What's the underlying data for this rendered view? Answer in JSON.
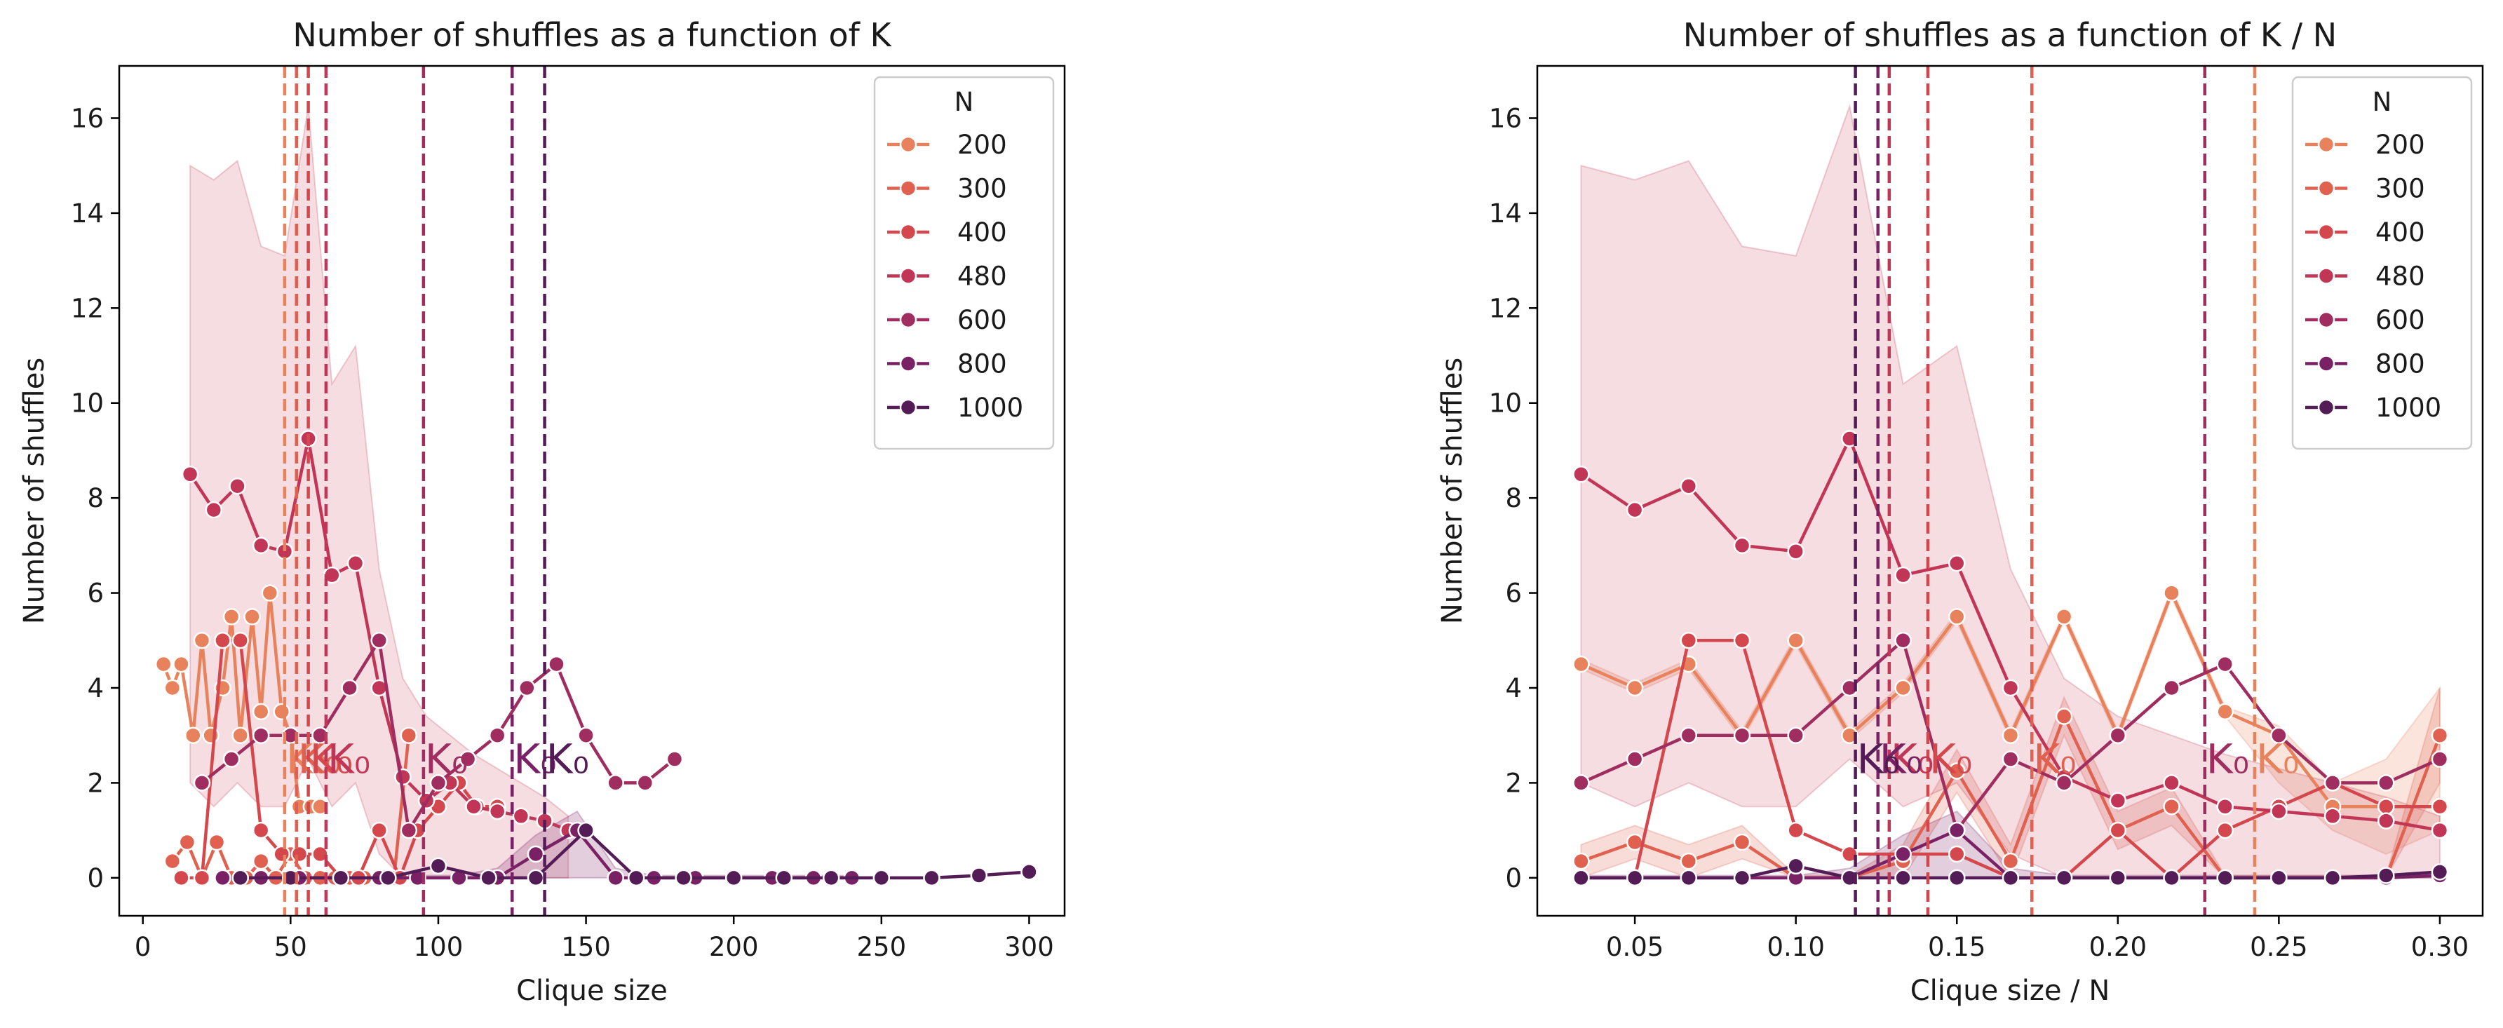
{
  "figure": {
    "palette": {
      "200": "#e8825d",
      "300": "#e0614f",
      "400": "#d4474c",
      "480": "#c13556",
      "600": "#a02d5f",
      "800": "#7a2165",
      "1000": "#531c56"
    },
    "band_color": "#c8405c"
  },
  "chart_data": [
    {
      "type": "line",
      "title": "Number of shuffles as a function of K",
      "xlabel": "Clique size",
      "ylabel": "Number of shuffles",
      "xlim": [
        -8,
        312
      ],
      "ylim": [
        -0.8,
        17.1
      ],
      "xticks": [
        0,
        50,
        100,
        150,
        200,
        250,
        300
      ],
      "xtick_labels": [
        "0",
        "50",
        "100",
        "150",
        "200",
        "250",
        "300"
      ],
      "yticks": [
        0,
        2,
        4,
        6,
        8,
        10,
        12,
        14,
        16
      ],
      "ytick_labels": [
        "0",
        "2",
        "4",
        "6",
        "8",
        "10",
        "12",
        "14",
        "16"
      ],
      "grid": false,
      "legend": {
        "title": "N",
        "placement": "top-right",
        "entries": [
          "200",
          "300",
          "400",
          "480",
          "600",
          "800",
          "1000"
        ]
      },
      "k0_label": "K₀",
      "k0_y": 2.5,
      "series": [
        {
          "name": "200",
          "k0": 48,
          "x": [
            7,
            10,
            13,
            17,
            20,
            23,
            27,
            30,
            33,
            37,
            40,
            43,
            47,
            50,
            53,
            57,
            60
          ],
          "y": [
            4.5,
            4.0,
            4.5,
            3.0,
            5.0,
            3.0,
            4.0,
            5.5,
            3.0,
            5.5,
            3.5,
            6.0,
            3.5,
            3.0,
            1.5,
            1.5,
            1.5
          ],
          "band": null
        },
        {
          "name": "300",
          "k0": 52,
          "x": [
            10,
            15,
            20,
            25,
            30,
            35,
            40,
            45,
            50,
            55,
            60,
            65,
            70,
            75,
            80,
            85,
            90
          ],
          "y": [
            0.35,
            0.75,
            0.0,
            0.75,
            0.0,
            0.0,
            0.35,
            0.0,
            0.5,
            0.0,
            0.0,
            0.0,
            0.0,
            0.0,
            0.0,
            0.0,
            3.0
          ],
          "band": null
        },
        {
          "name": "400",
          "k0": 56,
          "x": [
            13,
            20,
            27,
            33,
            40,
            47,
            53,
            60,
            67,
            73,
            80,
            87,
            93,
            100,
            107,
            113,
            120
          ],
          "y": [
            0.0,
            0.0,
            5.0,
            5.0,
            1.0,
            0.5,
            0.5,
            0.5,
            0.0,
            0.0,
            1.0,
            0.0,
            1.0,
            1.5,
            2.0,
            1.5,
            1.5
          ],
          "band": null
        },
        {
          "name": "480",
          "k0": 62,
          "x": [
            16,
            24,
            32,
            40,
            48,
            56,
            64,
            72,
            80,
            88,
            96,
            104,
            112,
            120,
            128,
            136,
            144
          ],
          "y": [
            8.5,
            7.75,
            8.25,
            7.0,
            6.875,
            9.25,
            6.375,
            6.625,
            4.0,
            2.125,
            1.625,
            2.0,
            1.5,
            1.4,
            1.3,
            1.2,
            1.0
          ],
          "band": {
            "x": [
              16,
              24,
              32,
              40,
              48,
              56,
              64,
              72,
              80,
              88,
              96,
              104,
              112,
              120,
              128,
              136,
              144
            ],
            "lower": [
              2.0,
              1.5,
              2.0,
              1.5,
              1.5,
              2.5,
              1.5,
              2.0,
              0.5,
              0.0,
              0.0,
              0.0,
              0.0,
              0.0,
              0.0,
              0.0,
              0.0
            ],
            "upper": [
              15.0,
              14.7,
              15.1,
              13.3,
              13.1,
              16.25,
              10.4,
              11.2,
              6.5,
              4.2,
              3.4,
              3.0,
              2.6,
              2.3,
              2.0,
              1.7,
              1.3
            ]
          }
        },
        {
          "name": "600",
          "k0": 95,
          "x": [
            20,
            30,
            40,
            50,
            60,
            70,
            80,
            90,
            100,
            110,
            120,
            130,
            140,
            150,
            160,
            170,
            180
          ],
          "y": [
            2.0,
            2.5,
            3.0,
            3.0,
            3.0,
            4.0,
            5.0,
            1.0,
            2.0,
            2.5,
            3.0,
            4.0,
            4.5,
            3.0,
            2.0,
            2.0,
            2.5
          ],
          "band": null
        },
        {
          "name": "800",
          "k0": 125,
          "x": [
            27,
            40,
            53,
            67,
            80,
            93,
            107,
            120,
            133,
            147,
            160,
            173,
            187,
            200,
            213,
            227,
            240
          ],
          "y": [
            0.0,
            0.0,
            0.0,
            0.0,
            0.0,
            0.0,
            0.0,
            0.0,
            0.5,
            1.0,
            0.0,
            0.0,
            0.0,
            0.0,
            0.0,
            0.0,
            0.0
          ],
          "band": {
            "x": [
              27,
              40,
              53,
              67,
              80,
              93,
              107,
              120,
              133,
              147,
              160,
              173,
              187,
              200,
              213,
              227,
              240
            ],
            "lower": [
              0,
              0,
              0,
              0,
              0,
              0,
              0,
              0,
              0,
              0,
              0,
              0,
              0,
              0,
              0,
              0,
              0
            ],
            "upper": [
              0.05,
              0.05,
              0.05,
              0.05,
              0.05,
              0.05,
              0.05,
              0.2,
              0.9,
              1.4,
              0.2,
              0.05,
              0.05,
              0.05,
              0.05,
              0.05,
              0.05
            ]
          }
        },
        {
          "name": "1000",
          "k0": 136,
          "x": [
            33,
            50,
            67,
            83,
            100,
            117,
            133,
            150,
            167,
            183,
            200,
            217,
            233,
            250,
            267,
            283,
            300
          ],
          "y": [
            0.0,
            0.0,
            0.0,
            0.0,
            0.25,
            0.0,
            0.0,
            1.0,
            0.0,
            0.0,
            0.0,
            0.0,
            0.0,
            0.0,
            0.0,
            0.05,
            0.125
          ],
          "band": null
        }
      ]
    },
    {
      "type": "line",
      "title": "Number of shuffles as a function of K / N",
      "xlabel": "Clique size / N",
      "ylabel": "Number of shuffles",
      "xlim": [
        0.0197,
        0.3133
      ],
      "ylim": [
        -0.8,
        17.1
      ],
      "xticks": [
        0.05,
        0.1,
        0.15,
        0.2,
        0.25,
        0.3
      ],
      "xtick_labels": [
        "0.05",
        "0.10",
        "0.15",
        "0.20",
        "0.25",
        "0.30"
      ],
      "yticks": [
        0,
        2,
        4,
        6,
        8,
        10,
        12,
        14,
        16
      ],
      "ytick_labels": [
        "0",
        "2",
        "4",
        "6",
        "8",
        "10",
        "12",
        "14",
        "16"
      ],
      "grid": false,
      "legend": {
        "title": "N",
        "placement": "top-right",
        "entries": [
          "200",
          "300",
          "400",
          "480",
          "600",
          "800",
          "1000"
        ]
      },
      "k0_label": "K₀",
      "k0_y": 2.5,
      "series": [
        {
          "name": "200",
          "k0": 0.2425,
          "x": [
            0.0333,
            0.05,
            0.0667,
            0.0833,
            0.1,
            0.1167,
            0.1333,
            0.15,
            0.1667,
            0.1833,
            0.2,
            0.2167,
            0.2333,
            0.25,
            0.2667,
            0.2833,
            0.3
          ],
          "y": [
            4.5,
            4.0,
            4.5,
            3.0,
            5.0,
            3.0,
            4.0,
            5.5,
            3.0,
            5.5,
            3.0,
            6.0,
            3.5,
            3.0,
            1.5,
            1.5,
            1.5
          ],
          "band": {
            "x": [
              0.0333,
              0.05,
              0.0667,
              0.0833,
              0.1,
              0.1167,
              0.1333,
              0.15,
              0.1667,
              0.1833,
              0.2,
              0.2167,
              0.2333,
              0.25,
              0.2667,
              0.2833,
              0.3
            ],
            "lower": [
              4.4,
              3.9,
              4.4,
              2.9,
              4.9,
              2.9,
              3.9,
              5.4,
              2.9,
              5.4,
              2.9,
              5.9,
              3.4,
              2.0,
              1.0,
              0.5,
              1.0
            ],
            "upper": [
              4.6,
              4.1,
              4.6,
              3.1,
              5.1,
              3.1,
              4.1,
              5.6,
              3.1,
              5.6,
              3.1,
              6.1,
              3.6,
              3.2,
              2.0,
              2.5,
              4.0
            ]
          }
        },
        {
          "name": "300",
          "k0": 0.1733,
          "x": [
            0.0333,
            0.05,
            0.0667,
            0.0833,
            0.1,
            0.1167,
            0.1333,
            0.15,
            0.1667,
            0.1833,
            0.2,
            0.2167,
            0.2333,
            0.25,
            0.2667,
            0.2833,
            0.3
          ],
          "y": [
            0.35,
            0.75,
            0.35,
            0.75,
            0.0,
            0.0,
            0.35,
            2.25,
            0.35,
            3.4,
            1.0,
            1.5,
            0.0,
            0.0,
            0.0,
            0.0,
            3.0
          ],
          "band": {
            "x": [
              0.0333,
              0.05,
              0.0667,
              0.0833,
              0.1,
              0.1167,
              0.1333,
              0.15,
              0.1667,
              0.1833,
              0.2,
              0.2167,
              0.2333,
              0.25,
              0.2667,
              0.2833,
              0.3
            ],
            "lower": [
              0.0,
              0.4,
              0.0,
              0.4,
              0.0,
              0.0,
              0.0,
              1.8,
              0.0,
              3.0,
              0.6,
              1.1,
              0.0,
              0.0,
              0.0,
              0.0,
              2.0
            ],
            "upper": [
              0.7,
              1.1,
              0.7,
              1.1,
              0.05,
              0.05,
              0.7,
              2.7,
              0.7,
              3.8,
              1.4,
              1.9,
              0.05,
              0.05,
              0.05,
              0.05,
              4.0
            ]
          }
        },
        {
          "name": "400",
          "k0": 0.141,
          "x": [
            0.0333,
            0.05,
            0.0667,
            0.0833,
            0.1,
            0.1167,
            0.1333,
            0.15,
            0.1667,
            0.1833,
            0.2,
            0.2167,
            0.2333,
            0.25,
            0.2667,
            0.2833,
            0.3
          ],
          "y": [
            0.0,
            0.0,
            5.0,
            5.0,
            1.0,
            0.5,
            0.5,
            0.5,
            0.0,
            0.0,
            1.0,
            0.0,
            1.0,
            1.5,
            2.0,
            1.5,
            1.5
          ],
          "band": null
        },
        {
          "name": "480",
          "k0": 0.129,
          "x": [
            0.0333,
            0.05,
            0.0667,
            0.0833,
            0.1,
            0.1167,
            0.1333,
            0.15,
            0.1667,
            0.1833,
            0.2,
            0.2167,
            0.2333,
            0.25,
            0.2667,
            0.2833,
            0.3
          ],
          "y": [
            8.5,
            7.75,
            8.25,
            7.0,
            6.875,
            9.25,
            6.375,
            6.625,
            4.0,
            2.125,
            1.625,
            2.0,
            1.5,
            1.4,
            1.3,
            1.2,
            1.0
          ],
          "band": {
            "x": [
              0.0333,
              0.05,
              0.0667,
              0.0833,
              0.1,
              0.1167,
              0.1333,
              0.15,
              0.1667,
              0.1833,
              0.2,
              0.2167,
              0.2333,
              0.25,
              0.2667,
              0.2833,
              0.3
            ],
            "lower": [
              2.0,
              1.5,
              2.0,
              1.5,
              1.5,
              2.5,
              1.5,
              2.0,
              0.5,
              0.0,
              0.0,
              0.0,
              0.0,
              0.0,
              0.0,
              0.0,
              0.0
            ],
            "upper": [
              15.0,
              14.7,
              15.1,
              13.3,
              13.1,
              16.25,
              10.4,
              11.2,
              6.5,
              4.2,
              3.4,
              3.0,
              2.6,
              2.3,
              2.0,
              1.7,
              1.3
            ]
          }
        },
        {
          "name": "600",
          "k0": 0.227,
          "x": [
            0.0333,
            0.05,
            0.0667,
            0.0833,
            0.1,
            0.1167,
            0.1333,
            0.15,
            0.1667,
            0.1833,
            0.2,
            0.2167,
            0.2333,
            0.25,
            0.2667,
            0.2833,
            0.3
          ],
          "y": [
            2.0,
            2.5,
            3.0,
            3.0,
            3.0,
            4.0,
            5.0,
            1.0,
            2.5,
            2.0,
            3.0,
            4.0,
            4.5,
            3.0,
            2.0,
            2.0,
            2.5
          ],
          "band": null
        },
        {
          "name": "800",
          "k0": 0.1255,
          "x": [
            0.0333,
            0.05,
            0.0667,
            0.0833,
            0.1,
            0.1167,
            0.1333,
            0.15,
            0.1667,
            0.1833,
            0.2,
            0.2167,
            0.2333,
            0.25,
            0.2667,
            0.2833,
            0.3
          ],
          "y": [
            0.0,
            0.0,
            0.0,
            0.0,
            0.0,
            0.0,
            0.5,
            1.0,
            0.0,
            0.0,
            0.0,
            0.0,
            0.0,
            0.0,
            0.0,
            0.0,
            0.05
          ],
          "band": {
            "x": [
              0.0333,
              0.05,
              0.0667,
              0.0833,
              0.1,
              0.1167,
              0.1333,
              0.15,
              0.1667,
              0.1833,
              0.2,
              0.2167,
              0.2333,
              0.25,
              0.2667,
              0.2833,
              0.3
            ],
            "lower": [
              0,
              0,
              0,
              0,
              0,
              0,
              0,
              0,
              0,
              0,
              0,
              0,
              0,
              0,
              0,
              0,
              0
            ],
            "upper": [
              0.05,
              0.05,
              0.05,
              0.05,
              0.05,
              0.2,
              0.9,
              1.4,
              0.2,
              0.05,
              0.05,
              0.05,
              0.05,
              0.05,
              0.05,
              0.05,
              0.05
            ]
          }
        },
        {
          "name": "1000",
          "k0": 0.1185,
          "x": [
            0.0333,
            0.05,
            0.0667,
            0.0833,
            0.1,
            0.1167,
            0.1333,
            0.15,
            0.1667,
            0.1833,
            0.2,
            0.2167,
            0.2333,
            0.25,
            0.2667,
            0.2833,
            0.3
          ],
          "y": [
            0.0,
            0.0,
            0.0,
            0.0,
            0.25,
            0.0,
            0.0,
            0.0,
            0.0,
            0.0,
            0.0,
            0.0,
            0.0,
            0.0,
            0.0,
            0.05,
            0.125
          ],
          "band": null
        }
      ]
    }
  ]
}
